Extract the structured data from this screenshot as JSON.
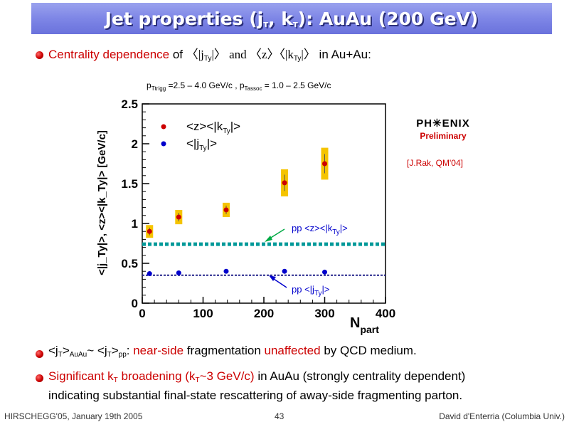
{
  "slide": {
    "title": "Jet properties (jT, kT): AuAu (200 GeV)",
    "title_parts": {
      "a": "Jet properties (j",
      "b": "T",
      "c": ", k",
      "d": "T",
      "e": "): AuAu (200 GeV)"
    },
    "bullet1": {
      "a": "Centrality dependence",
      "b": " of ",
      "c": "〈|j",
      "d": "Ty",
      "e": "|〉 and 〈z〉〈|k",
      "f": "Ty",
      "g": "|〉",
      "h": " in Au+Au:"
    },
    "note": {
      "a": "p",
      "b": "Ttrigg",
      "c": " =2.5 – 4.0 GeV/c , p",
      "d": "Tassoc",
      "e": " = 1.0 – 2.5 GeV/c"
    },
    "bullet2": {
      "a": "<j",
      "b": "T",
      "c": ">",
      "d": "AuAu",
      "e": "~ <j",
      "f": "T",
      "g": ">",
      "h": "pp",
      "i": ": ",
      "j": "near-side",
      "k": " fragmentation ",
      "l": "unaffected",
      "m": " by QCD medium."
    },
    "bullet3": {
      "a": "Significant k",
      "b": "T",
      "c": " broadening (k",
      "d": "T",
      "e": "~3 GeV/c)",
      "f": " in AuAu (strongly centrality dependent)",
      "line2": "indicating substantial final-state rescattering of away-side fragmenting parton."
    },
    "phenix": {
      "logo": "PH✳ENIX",
      "prelim": "Preliminary"
    },
    "ref": "[J.Rak, QM'04]",
    "footer": {
      "left": "HIRSCHEGG'05, January 19th 2005",
      "center": "43",
      "right": "David d'Enterria (Columbia Univ.)"
    }
  },
  "colors": {
    "accent_red": "#cc0000",
    "blue": "#0000cc",
    "band": "#f5c400",
    "pp_kt_line": "#009999",
    "pp_jt_line": "#22228a"
  },
  "chart_data": {
    "type": "scatter",
    "xlabel": "N",
    "xlabel_sub": "part",
    "ylabel": "<|j_Ty|>, <z><|k_Ty|> [GeV/c]",
    "xlim": [
      0,
      400
    ],
    "ylim": [
      0,
      2.5
    ],
    "x_ticks": [
      0,
      100,
      200,
      300,
      400
    ],
    "y_ticks": [
      0,
      0.5,
      1,
      1.5,
      2,
      2.5
    ],
    "y_tick_labels": [
      "0",
      "0.5",
      "1",
      "1.5",
      "2",
      "2.5"
    ],
    "series": [
      {
        "name": "<z><|kTy|>",
        "legend": {
          "a": "<z><|k",
          "b": "Ty",
          "c": "|>"
        },
        "color": "#cc0000",
        "x": [
          12,
          60,
          138,
          234,
          300
        ],
        "y": [
          0.9,
          1.08,
          1.17,
          1.51,
          1.75
        ],
        "syst_band": [
          0.08,
          0.09,
          0.09,
          0.17,
          0.2
        ]
      },
      {
        "name": "<|jTy|>",
        "legend": {
          "a": "<|j",
          "b": "Ty",
          "c": "|>"
        },
        "color": "#0000cc",
        "x": [
          12,
          60,
          138,
          234,
          300
        ],
        "y": [
          0.37,
          0.38,
          0.4,
          0.4,
          0.39
        ]
      }
    ],
    "reference_lines": [
      {
        "label": {
          "a": "pp <z><|k",
          "b": "Ty",
          "c": "|>"
        },
        "y": 0.74,
        "color": "#009999"
      },
      {
        "label": {
          "a": "pp <|j",
          "b": "Ty",
          "c": "|>"
        },
        "y": 0.35,
        "color": "#22228a"
      }
    ]
  }
}
